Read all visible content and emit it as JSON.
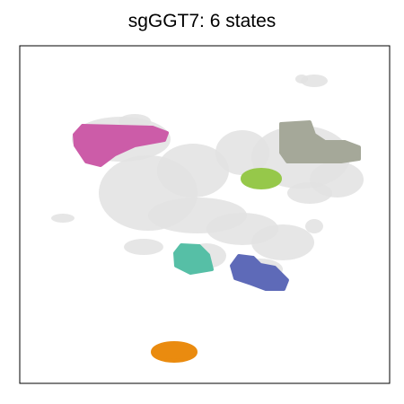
{
  "chart_data": {
    "type": "scatter",
    "title": "sgGGT7: 6 states",
    "xlabel": "",
    "ylabel": "",
    "grid": false,
    "legend": "none",
    "background_color": "#e2e2e2",
    "states": [
      {
        "color": "#cc5ca8"
      },
      {
        "color": "#a5a899"
      },
      {
        "color": "#96c84a"
      },
      {
        "color": "#56bfa6"
      },
      {
        "color": "#5e6ab8"
      },
      {
        "color": "#ea8b0f"
      }
    ]
  }
}
